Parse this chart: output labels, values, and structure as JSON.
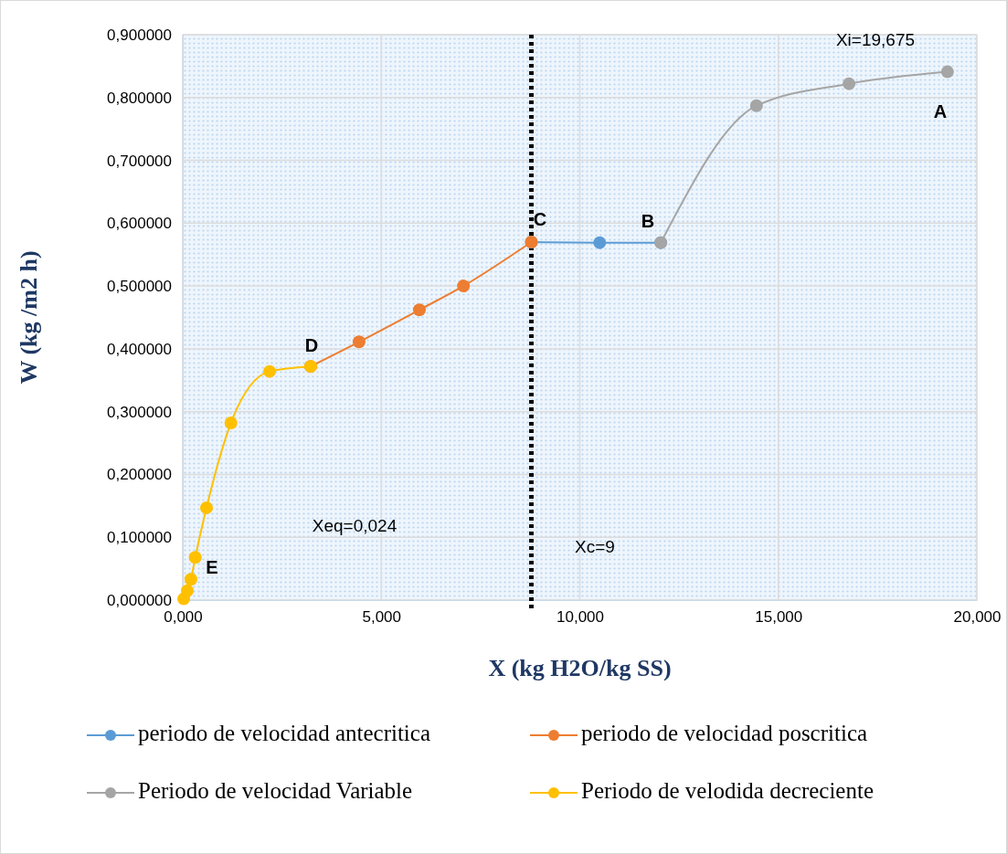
{
  "chart_data": {
    "type": "line",
    "xlabel": "X (kg H2O/kg SS)",
    "ylabel": "W (kg /m2 h)",
    "xlim": [
      0,
      20
    ],
    "ylim": [
      0,
      0.9
    ],
    "xticks": [
      {
        "value": 0,
        "label": "0,000"
      },
      {
        "value": 5,
        "label": "5,000"
      },
      {
        "value": 10,
        "label": "10,000"
      },
      {
        "value": 15,
        "label": "15,000"
      },
      {
        "value": 20,
        "label": "20,000"
      }
    ],
    "yticks": [
      {
        "value": 0,
        "label": "0,000000"
      },
      {
        "value": 0.1,
        "label": "0,100000"
      },
      {
        "value": 0.2,
        "label": "0,200000"
      },
      {
        "value": 0.3,
        "label": "0,300000"
      },
      {
        "value": 0.4,
        "label": "0,400000"
      },
      {
        "value": 0.5,
        "label": "0,500000"
      },
      {
        "value": 0.6,
        "label": "0,600000"
      },
      {
        "value": 0.7,
        "label": "0,700000"
      },
      {
        "value": 0.8,
        "label": "0,800000"
      },
      {
        "value": 0.9,
        "label": "0,900000"
      }
    ],
    "grid": true,
    "legend": "bottom",
    "marker": "circle",
    "line_style": "solid",
    "series": [
      {
        "name": "periodo de velocidad antecritica",
        "color": "#5b9bd5",
        "x": [
          8.78,
          10.5,
          12.04
        ],
        "values": [
          0.57,
          0.569,
          0.569
        ]
      },
      {
        "name": "periodo de velocidad poscritica",
        "color": "#ed7d31",
        "x": [
          3.22,
          4.44,
          5.96,
          7.07,
          8.78
        ],
        "values": [
          0.372,
          0.411,
          0.462,
          0.5,
          0.57
        ]
      },
      {
        "name": "Periodo de velocidad Variable",
        "color": "#a5a5a5",
        "x": [
          12.04,
          14.45,
          16.78,
          19.26
        ],
        "values": [
          0.569,
          0.787,
          0.822,
          0.841
        ]
      },
      {
        "name": "Periodo de velodida decreciente",
        "color": "#ffc000",
        "x": [
          0.024,
          0.115,
          0.207,
          0.315,
          0.598,
          1.213,
          2.186,
          3.222
        ],
        "values": [
          0.002,
          0.015,
          0.033,
          0.068,
          0.147,
          0.282,
          0.364,
          0.372
        ]
      }
    ],
    "ref_lines": [
      {
        "axis": "x",
        "value": 8.78,
        "color": "#000000",
        "line_style": "dotted"
      }
    ],
    "annotations": [
      "A",
      "B",
      "C",
      "D",
      "E",
      "Xi=19,675",
      "Xc=9",
      "Xeq=0,024"
    ]
  }
}
